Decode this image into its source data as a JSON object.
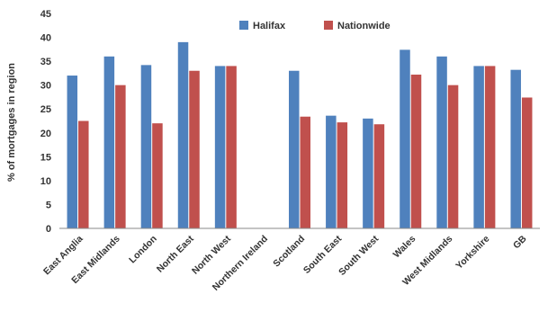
{
  "chart_data": {
    "type": "bar",
    "title": "",
    "xlabel": "",
    "ylabel": "% of mortgages in region",
    "ylim": [
      0,
      45
    ],
    "yticks": [
      0,
      5,
      10,
      15,
      20,
      25,
      30,
      35,
      40,
      45
    ],
    "grid": false,
    "legend_position": "top-center",
    "categories": [
      "East Anglia",
      "East Midlands",
      "London",
      "North East",
      "North West",
      "Northern Ireland",
      "Scotland",
      "South East",
      "South West",
      "Wales",
      "West Midlands",
      "Yorkshire",
      "GB"
    ],
    "series": [
      {
        "name": "Halifax",
        "color": "#4F81BD",
        "values": [
          32,
          36,
          34.2,
          39,
          34,
          0,
          33,
          23.6,
          23,
          37.4,
          36,
          34,
          33.2
        ]
      },
      {
        "name": "Nationwide",
        "color": "#C0504D",
        "values": [
          22.5,
          30,
          22,
          33,
          34,
          0,
          23.4,
          22.2,
          21.8,
          32.2,
          30,
          34,
          27.4
        ]
      }
    ]
  }
}
